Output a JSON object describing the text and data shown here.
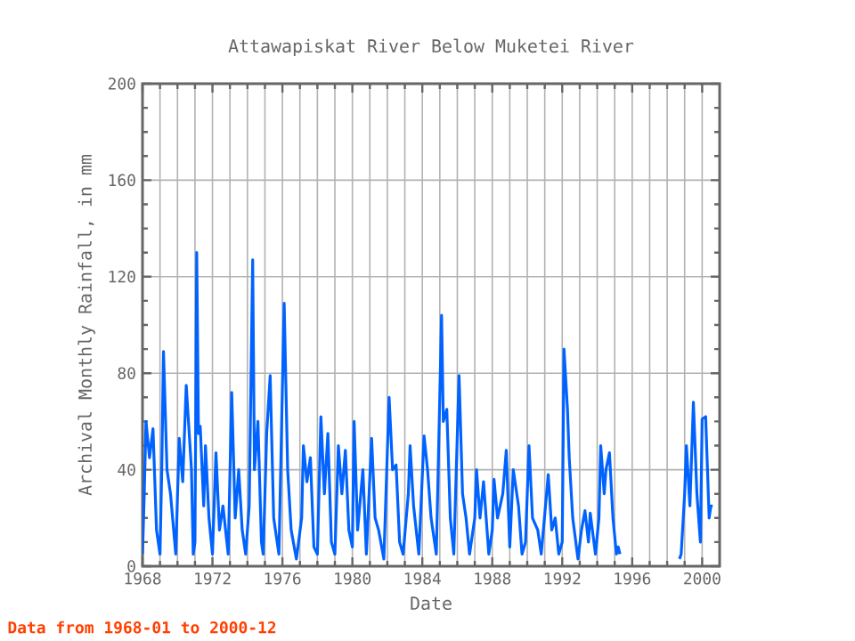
{
  "chart_data": {
    "type": "line",
    "title": "Attawapiskat River Below Muketei River",
    "xlabel": "Date",
    "ylabel": "Archival Monthly Rainfall, in mm",
    "annotations": [
      "Data from 1968-01 to 2000-12"
    ],
    "x": [
      1968.0,
      1968.1,
      1968.2,
      1968.4,
      1968.6,
      1968.8,
      1969.0,
      1969.1,
      1969.2,
      1969.4,
      1969.6,
      1969.9,
      1970.1,
      1970.3,
      1970.5,
      1970.8,
      1970.9,
      1971.0,
      1971.1,
      1971.2,
      1971.3,
      1971.5,
      1971.6,
      1971.8,
      1972.0,
      1972.2,
      1972.4,
      1972.6,
      1972.9,
      1973.1,
      1973.3,
      1973.5,
      1973.7,
      1973.9,
      1974.1,
      1974.3,
      1974.4,
      1974.6,
      1974.8,
      1974.9,
      1975.1,
      1975.3,
      1975.5,
      1975.8,
      1976.1,
      1976.3,
      1976.5,
      1976.8,
      1977.1,
      1977.2,
      1977.4,
      1977.6,
      1977.8,
      1978.0,
      1978.2,
      1978.4,
      1978.6,
      1978.8,
      1979.0,
      1979.2,
      1979.4,
      1979.6,
      1979.8,
      1980.0,
      1980.1,
      1980.3,
      1980.6,
      1980.8,
      1981.1,
      1981.3,
      1981.5,
      1981.8,
      1982.1,
      1982.3,
      1982.5,
      1982.7,
      1982.9,
      1983.2,
      1983.3,
      1983.5,
      1983.8,
      1984.1,
      1984.3,
      1984.5,
      1984.8,
      1985.1,
      1985.2,
      1985.4,
      1985.6,
      1985.8,
      1986.1,
      1986.3,
      1986.5,
      1986.7,
      1987.0,
      1987.1,
      1987.3,
      1987.5,
      1987.8,
      1988.0,
      1988.1,
      1988.3,
      1988.6,
      1988.8,
      1989.0,
      1989.2,
      1989.5,
      1989.7,
      1989.9,
      1990.1,
      1990.3,
      1990.6,
      1990.8,
      1991.2,
      1991.4,
      1991.6,
      1991.8,
      1992.0,
      1992.1,
      1992.3,
      1992.4,
      1992.6,
      1992.9,
      1993.1,
      1993.3,
      1993.5,
      1993.6,
      1993.9,
      1994.1,
      1994.2,
      1994.4,
      1994.5,
      1994.7,
      1994.9,
      1995.1,
      1995.2,
      1995.3,
      1997.0,
      1998.7,
      1998.8,
      1999.0,
      1999.1,
      1999.3,
      1999.5,
      1999.7,
      1999.9,
      2000.0,
      2000.2,
      2000.4,
      2000.5,
      2000.6
    ],
    "series": [
      {
        "color": "#0062ff",
        "values": [
          5,
          30,
          60,
          45,
          57,
          15,
          5,
          40,
          89,
          40,
          30,
          5,
          53,
          35,
          75,
          40,
          5,
          10,
          130,
          55,
          58,
          25,
          50,
          20,
          5,
          47,
          15,
          25,
          5,
          72,
          20,
          40,
          15,
          5,
          25,
          127,
          40,
          60,
          10,
          5,
          55,
          79,
          20,
          5,
          109,
          40,
          15,
          3,
          20,
          50,
          35,
          45,
          8,
          5,
          62,
          30,
          55,
          10,
          5,
          50,
          30,
          48,
          15,
          8,
          60,
          15,
          40,
          5,
          53,
          20,
          15,
          3,
          70,
          40,
          42,
          10,
          5,
          30,
          50,
          25,
          5,
          54,
          40,
          20,
          5,
          104,
          60,
          65,
          20,
          5,
          79,
          30,
          20,
          5,
          20,
          40,
          20,
          35,
          5,
          15,
          36,
          20,
          30,
          48,
          8,
          40,
          25,
          5,
          10,
          50,
          20,
          15,
          5,
          38,
          15,
          20,
          5,
          10,
          90,
          65,
          45,
          20,
          3,
          15,
          23,
          10,
          22,
          5,
          20,
          50,
          30,
          40,
          47,
          20,
          5,
          8,
          5,
          null,
          3,
          5,
          30,
          50,
          25,
          68,
          30,
          10,
          61,
          62,
          20,
          25,
          25
        ]
      }
    ],
    "xlim": [
      1968,
      2001
    ],
    "ylim": [
      0,
      200
    ],
    "xticks": [
      1968,
      1972,
      1976,
      1980,
      1984,
      1988,
      1992,
      1996,
      2000
    ],
    "yticks": [
      0,
      40,
      80,
      120,
      160,
      200
    ],
    "grid": true
  }
}
